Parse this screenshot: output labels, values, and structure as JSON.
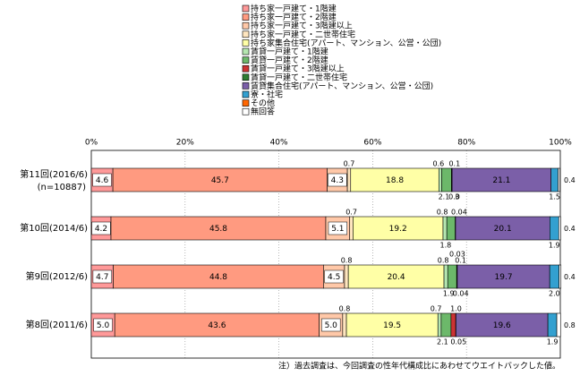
{
  "chart_data": {
    "type": "bar",
    "stacked": true,
    "orientation": "horizontal",
    "percent_axis": true,
    "xlim": [
      0,
      100
    ],
    "x_ticks": [
      "0%",
      "20%",
      "40%",
      "60%",
      "80%",
      "100%"
    ],
    "grid": "vertical dotted",
    "legend_position": "top",
    "note": "注）過去調査は、今回調査の性年代構成比にあわせてウエイトバックした値。",
    "categories": [
      {
        "label": "第11回(2016/6)",
        "sub": "(n=10887)"
      },
      {
        "label": "第10回(2014/6)",
        "sub": ""
      },
      {
        "label": "第9回(2012/6)",
        "sub": ""
      },
      {
        "label": "第8回(2011/6)",
        "sub": ""
      }
    ],
    "series": [
      {
        "name": "持ち家一戸建て・1階建",
        "color": "#ff9999",
        "values": [
          4.6,
          4.2,
          4.7,
          5.0
        ]
      },
      {
        "name": "持ち家一戸建て・2階建",
        "color": "#ff9a80",
        "values": [
          45.7,
          45.8,
          44.8,
          43.6
        ]
      },
      {
        "name": "持ち家一戸建て・3階建以上",
        "color": "#ffc8a8",
        "values": [
          4.3,
          5.1,
          4.5,
          5.0
        ]
      },
      {
        "name": "持ち家一戸建て・二世帯住宅",
        "color": "#ffe6bf",
        "values": [
          0.7,
          0.7,
          0.8,
          0.8
        ]
      },
      {
        "name": "持ち家集合住宅(アパート、マンション、公営・公団)",
        "color": "#ffffa6",
        "values": [
          18.8,
          19.2,
          20.4,
          19.5
        ]
      },
      {
        "name": "賃貸一戸建て・1階建",
        "color": "#b5e6b0",
        "values": [
          0.6,
          0.8,
          0.8,
          0.7
        ]
      },
      {
        "name": "賃貸一戸建て・2階建",
        "color": "#6cb86a",
        "values": [
          2.1,
          1.8,
          1.9,
          2.1
        ]
      },
      {
        "name": "賃貸一戸建て・3階建以上",
        "color": "#cc3333",
        "values": [
          0.03,
          0.04,
          0.04,
          1.0
        ]
      },
      {
        "name": "賃貸一戸建て・二世帯住宅",
        "color": "#2e7d32",
        "values": [
          0.1,
          0.03,
          0.1,
          0.05
        ]
      },
      {
        "name": "賃貸集合住宅(アパート、マンション、公営・公団)",
        "color": "#7b5fa8",
        "values": [
          21.1,
          20.1,
          19.7,
          19.6
        ]
      },
      {
        "name": "寮・社宅",
        "color": "#33a0d0",
        "values": [
          1.5,
          1.9,
          2.0,
          1.9
        ]
      },
      {
        "name": "その他",
        "color": "#ff6600",
        "values": [
          0.0,
          0.0,
          0.0,
          0.0
        ]
      },
      {
        "name": "無回答",
        "color": "#ffffff",
        "values": [
          0.4,
          0.4,
          0.4,
          0.8
        ]
      }
    ],
    "labels": [
      {
        "row": 0,
        "text": "4.6",
        "seg": 0,
        "pos": "in"
      },
      {
        "row": 0,
        "text": "45.7",
        "seg": 1,
        "pos": "in"
      },
      {
        "row": 0,
        "text": "4.3",
        "seg": 2,
        "pos": "in"
      },
      {
        "row": 0,
        "text": "0.7",
        "seg": 3,
        "pos": "above"
      },
      {
        "row": 0,
        "text": "18.8",
        "seg": 4,
        "pos": "in"
      },
      {
        "row": 0,
        "text": "0.6",
        "seg": 5,
        "pos": "above",
        "dx": -2
      },
      {
        "row": 0,
        "text": "0.1",
        "seg": 8,
        "pos": "above",
        "dx": 3
      },
      {
        "row": 0,
        "text": "21.1",
        "seg": 9,
        "pos": "in"
      },
      {
        "row": 0,
        "text": "2.1",
        "seg": 6,
        "pos": "below",
        "dx": -3
      },
      {
        "row": 0,
        "text": "0.0",
        "seg": 7,
        "pos": "below",
        "dx": 3
      },
      {
        "row": 0,
        "text": "3",
        "seg": 8,
        "pos": "below",
        "dx": 6
      },
      {
        "row": 0,
        "text": "1.5",
        "seg": 10,
        "pos": "below"
      },
      {
        "row": 0,
        "text": "0.4",
        "seg": 12,
        "pos": "right"
      },
      {
        "row": 1,
        "text": "4.2",
        "seg": 0,
        "pos": "in"
      },
      {
        "row": 1,
        "text": "45.8",
        "seg": 1,
        "pos": "in"
      },
      {
        "row": 1,
        "text": "5.1",
        "seg": 2,
        "pos": "in"
      },
      {
        "row": 1,
        "text": "0.7",
        "seg": 3,
        "pos": "above"
      },
      {
        "row": 1,
        "text": "19.2",
        "seg": 4,
        "pos": "in"
      },
      {
        "row": 1,
        "text": "0.8",
        "seg": 5,
        "pos": "above",
        "dx": -3
      },
      {
        "row": 1,
        "text": "0.04",
        "seg": 8,
        "pos": "above",
        "dx": 4
      },
      {
        "row": 1,
        "text": "20.1",
        "seg": 9,
        "pos": "in"
      },
      {
        "row": 1,
        "text": "1.8",
        "seg": 6,
        "pos": "below",
        "dx": -6
      },
      {
        "row": 1,
        "text": "0.03",
        "seg": 8,
        "pos": "below",
        "dx": 2,
        "dy": 10
      },
      {
        "row": 1,
        "text": "1.9",
        "seg": 10,
        "pos": "below"
      },
      {
        "row": 1,
        "text": "0.4",
        "seg": 12,
        "pos": "right"
      },
      {
        "row": 2,
        "text": "4.7",
        "seg": 0,
        "pos": "in"
      },
      {
        "row": 2,
        "text": "44.8",
        "seg": 1,
        "pos": "in"
      },
      {
        "row": 2,
        "text": "4.5",
        "seg": 2,
        "pos": "in"
      },
      {
        "row": 2,
        "text": "0.8",
        "seg": 3,
        "pos": "above"
      },
      {
        "row": 2,
        "text": "20.4",
        "seg": 4,
        "pos": "in"
      },
      {
        "row": 2,
        "text": "0.8",
        "seg": 5,
        "pos": "above",
        "dx": -3
      },
      {
        "row": 2,
        "text": "0.1",
        "seg": 8,
        "pos": "above",
        "dx": 4
      },
      {
        "row": 2,
        "text": "19.7",
        "seg": 9,
        "pos": "in"
      },
      {
        "row": 2,
        "text": "1.9",
        "seg": 6,
        "pos": "below",
        "dx": -4
      },
      {
        "row": 2,
        "text": "0.04",
        "seg": 8,
        "pos": "below",
        "dx": 4
      },
      {
        "row": 2,
        "text": "2.0",
        "seg": 10,
        "pos": "below"
      },
      {
        "row": 2,
        "text": "0.4",
        "seg": 12,
        "pos": "right"
      },
      {
        "row": 3,
        "text": "5.0",
        "seg": 0,
        "pos": "in"
      },
      {
        "row": 3,
        "text": "43.6",
        "seg": 1,
        "pos": "in"
      },
      {
        "row": 3,
        "text": "5.0",
        "seg": 2,
        "pos": "in"
      },
      {
        "row": 3,
        "text": "0.8",
        "seg": 3,
        "pos": "above"
      },
      {
        "row": 3,
        "text": "19.5",
        "seg": 4,
        "pos": "in"
      },
      {
        "row": 3,
        "text": "0.7",
        "seg": 5,
        "pos": "above",
        "dx": -4
      },
      {
        "row": 3,
        "text": "1.0",
        "seg": 7,
        "pos": "above",
        "dx": 3
      },
      {
        "row": 3,
        "text": "19.6",
        "seg": 9,
        "pos": "in"
      },
      {
        "row": 3,
        "text": "2.1",
        "seg": 6,
        "pos": "below",
        "dx": -4
      },
      {
        "row": 3,
        "text": "0.05",
        "seg": 8,
        "pos": "below",
        "dx": 3
      },
      {
        "row": 3,
        "text": "1.9",
        "seg": 10,
        "pos": "below"
      },
      {
        "row": 3,
        "text": "0.8",
        "seg": 12,
        "pos": "right"
      }
    ]
  }
}
